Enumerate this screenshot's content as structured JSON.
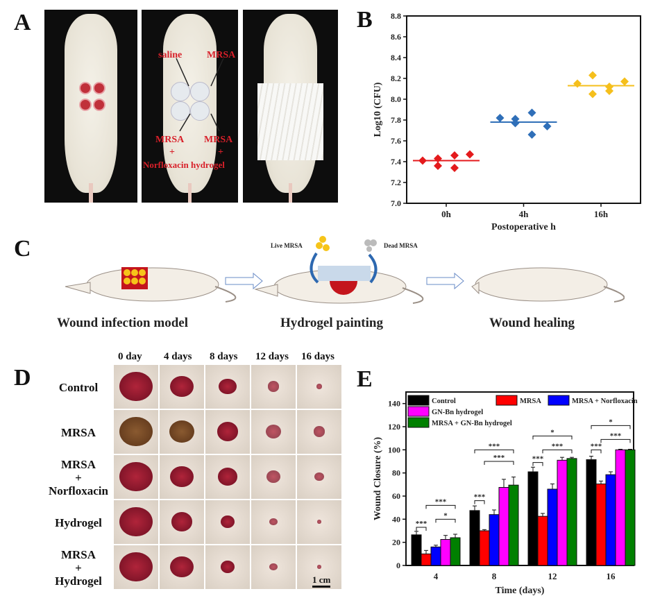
{
  "panels": {
    "a": "A",
    "b": "B",
    "c": "C",
    "d": "D",
    "e": "E"
  },
  "panel_a": {
    "labels": {
      "saline": "saline",
      "mrsa": "MRSA",
      "mrsa_bl": "MRSA",
      "plus_bl": "+",
      "mrsa_br": "MRSA",
      "plus_br": "+",
      "norfloxacin_hydrogel": "Norfloxacin hydrogel"
    }
  },
  "panel_c": {
    "live_mrsa": "Live MRSA",
    "dead_mrsa": "Dead MRSA",
    "steps": [
      "Wound infection model",
      "Hydrogel painting",
      "Wound healing"
    ]
  },
  "panel_d": {
    "columns": [
      "0 day",
      "4 days",
      "8 days",
      "12 days",
      "16 days"
    ],
    "rows": [
      {
        "label": [
          "Control"
        ],
        "sizes": [
          0.85,
          0.6,
          0.45,
          0.3,
          0.15
        ]
      },
      {
        "label": [
          "MRSA"
        ],
        "sizes": [
          0.85,
          0.65,
          0.55,
          0.4,
          0.3
        ]
      },
      {
        "label": [
          "MRSA",
          "+",
          "Norfloxacin"
        ],
        "sizes": [
          0.85,
          0.6,
          0.5,
          0.35,
          0.25
        ]
      },
      {
        "label": [
          "Hydrogel"
        ],
        "sizes": [
          0.85,
          0.55,
          0.35,
          0.2,
          0.08
        ]
      },
      {
        "label": [
          "MRSA",
          "+",
          "Hydrogel"
        ],
        "sizes": [
          0.85,
          0.6,
          0.35,
          0.2,
          0.08
        ]
      }
    ],
    "scale_bar": "1 cm"
  },
  "chart_data": [
    {
      "type": "scatter",
      "xlabel": "Postoperative h",
      "ylabel": "Log10 (CFU)",
      "ylim": [
        7.0,
        8.8
      ],
      "yticks": [
        "7.0",
        "7.2",
        "7.4",
        "7.6",
        "7.8",
        "8.0",
        "8.2",
        "8.4",
        "8.6",
        "8.8"
      ],
      "categories": [
        "0h",
        "4h",
        "16h"
      ],
      "grid": false,
      "series": [
        {
          "category": "0h",
          "color": "#e41a1c",
          "mean": 7.41,
          "points": [
            7.41,
            7.43,
            7.36,
            7.46,
            7.34,
            7.47
          ]
        },
        {
          "category": "4h",
          "color": "#2f6fb8",
          "mean": 7.78,
          "points": [
            7.82,
            7.77,
            7.81,
            7.66,
            7.87,
            7.74
          ]
        },
        {
          "category": "16h",
          "color": "#f5bf1c",
          "mean": 8.13,
          "points": [
            8.15,
            8.05,
            8.23,
            8.08,
            8.12,
            8.17
          ]
        }
      ]
    },
    {
      "type": "bar",
      "xlabel": "Time (days)",
      "ylabel": "Wound Closure (%)",
      "ylim": [
        0,
        150
      ],
      "yticks": [
        "0",
        "20",
        "40",
        "60",
        "80",
        "100",
        "120",
        "140"
      ],
      "categories": [
        "4",
        "8",
        "12",
        "16"
      ],
      "legend_placement": "top-left",
      "grid": false,
      "series": [
        {
          "name": "Control",
          "color": "#000000",
          "values": [
            26.5,
            47.5,
            81,
            91.5
          ],
          "errors": [
            3,
            4,
            4,
            3
          ]
        },
        {
          "name": "MRSA",
          "color": "#ff0000",
          "values": [
            10,
            30,
            42.5,
            70.5
          ],
          "errors": [
            3,
            1,
            2.5,
            2.5
          ]
        },
        {
          "name": "MRSA + Norfloxacin",
          "color": "#0000ff",
          "values": [
            16,
            44,
            66,
            78.5
          ],
          "errors": [
            1.5,
            4,
            4.5,
            2.5
          ]
        },
        {
          "name": "GN-Bn hydrogel",
          "color": "#ff00ff",
          "values": [
            22.5,
            67.5,
            91,
            100
          ],
          "errors": [
            3.5,
            7,
            2.5,
            0.5
          ]
        },
        {
          "name": "MRSA + GN-Bn hydrogel",
          "color": "#008000",
          "values": [
            24,
            69.5,
            92.5,
            100
          ],
          "errors": [
            3,
            7,
            1,
            0.5
          ]
        }
      ],
      "significance": [
        {
          "category": "4",
          "from": 0,
          "to": 1,
          "y": 33,
          "label": "***"
        },
        {
          "category": "4",
          "from": 2,
          "to": 4,
          "y": 40,
          "label": "*"
        },
        {
          "category": "4",
          "from": 1,
          "to": 4,
          "y": 52,
          "label": "***"
        },
        {
          "category": "8",
          "from": 0,
          "to": 1,
          "y": 56,
          "label": "***"
        },
        {
          "category": "8",
          "from": 1,
          "to": 4,
          "y": 90,
          "label": "***"
        },
        {
          "category": "8",
          "from": 0,
          "to": 4,
          "y": 100,
          "label": "***"
        },
        {
          "category": "12",
          "from": 0,
          "to": 1,
          "y": 89,
          "label": "***"
        },
        {
          "category": "12",
          "from": 1,
          "to": 4,
          "y": 100,
          "label": "***"
        },
        {
          "category": "12",
          "from": 0,
          "to": 4,
          "y": 112,
          "label": "*"
        },
        {
          "category": "16",
          "from": 0,
          "to": 1,
          "y": 100,
          "label": "***"
        },
        {
          "category": "16",
          "from": 1,
          "to": 4,
          "y": 109,
          "label": "***"
        },
        {
          "category": "16",
          "from": 0,
          "to": 4,
          "y": 121,
          "label": "*"
        }
      ]
    }
  ]
}
